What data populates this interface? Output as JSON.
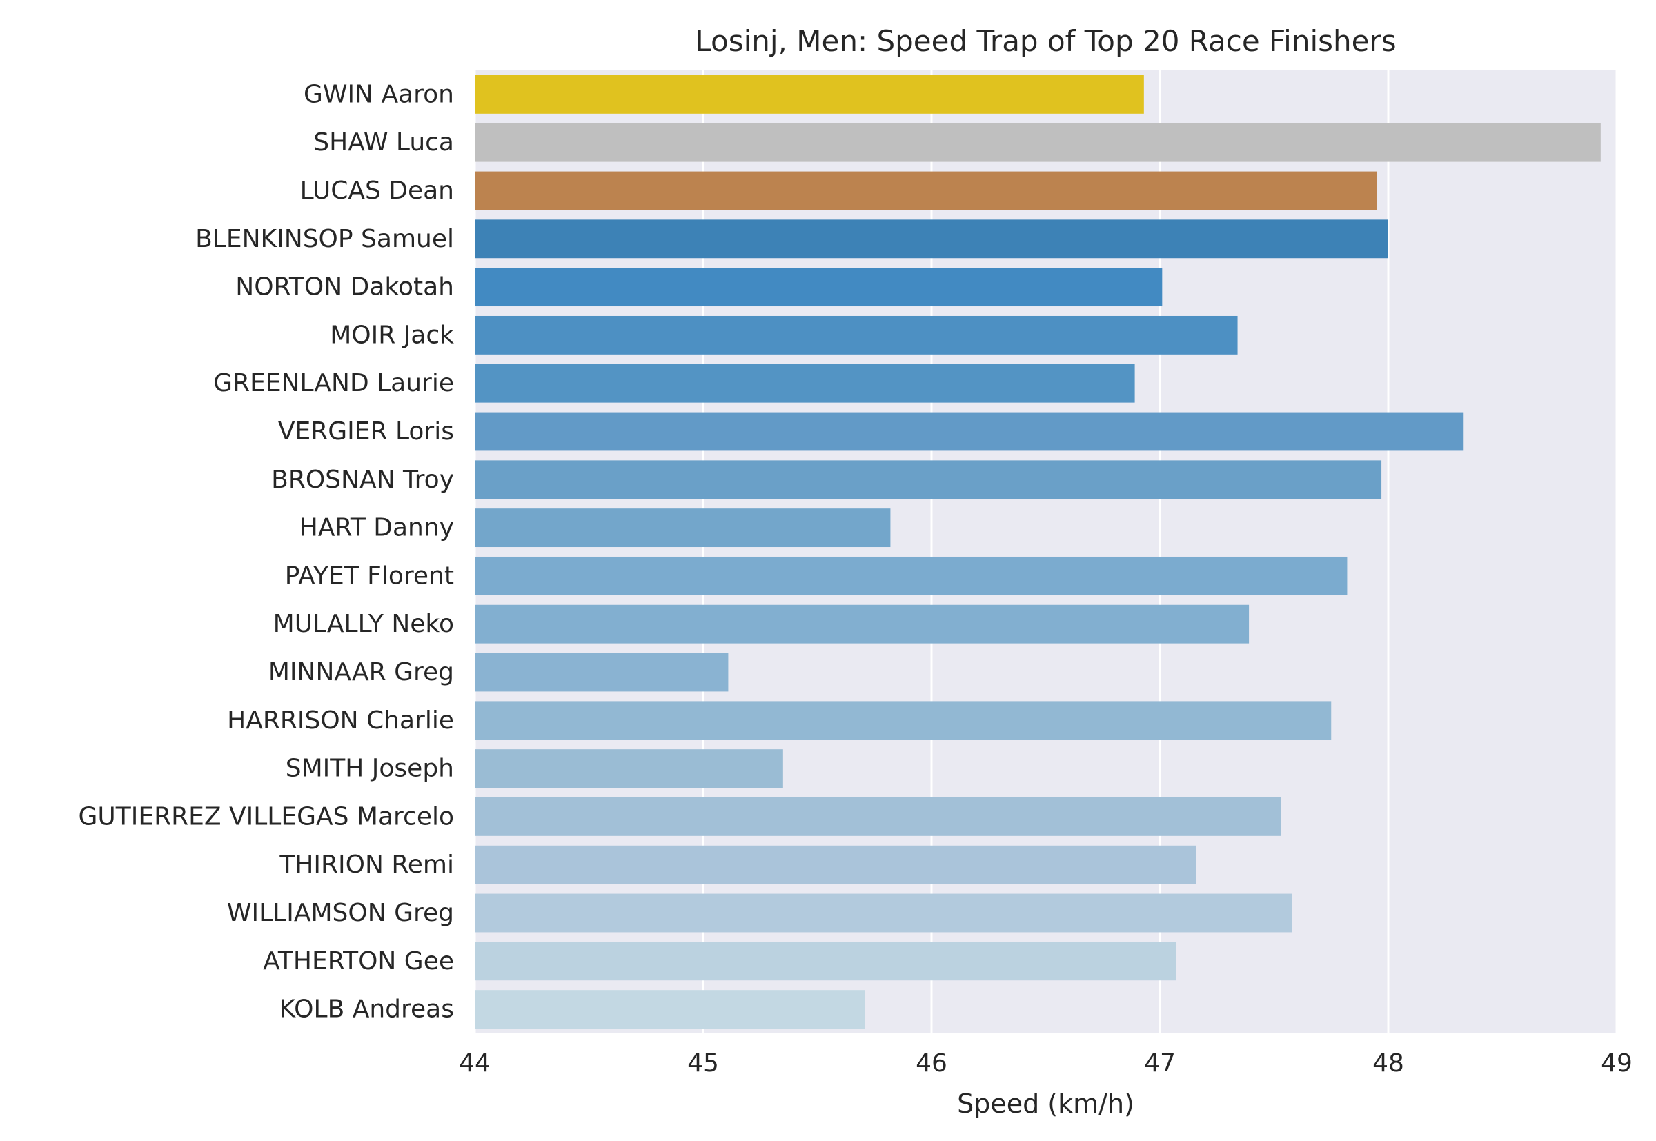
{
  "chart_data": {
    "type": "bar",
    "orientation": "horizontal",
    "title": "Losinj, Men: Speed Trap of Top 20 Race Finishers",
    "xlabel": "Speed (km/h)",
    "ylabel": "",
    "xlim": [
      44,
      49
    ],
    "xticks": [
      44,
      45,
      46,
      47,
      48,
      49
    ],
    "grid": true,
    "legend": "none",
    "categories": [
      "GWIN Aaron",
      "SHAW Luca",
      "LUCAS Dean",
      "BLENKINSOP Samuel",
      "NORTON Dakotah",
      "MOIR Jack",
      "GREENLAND Laurie",
      "VERGIER Loris",
      "BROSNAN Troy",
      "HART Danny",
      "PAYET Florent",
      "MULALLY Neko",
      "MINNAAR Greg",
      "HARRISON Charlie",
      "SMITH Joseph",
      "GUTIERREZ VILLEGAS Marcelo",
      "THIRION Remi",
      "WILLIAMSON Greg",
      "ATHERTON Gee",
      "KOLB Andreas"
    ],
    "values": [
      46.93,
      48.93,
      47.95,
      48.0,
      47.01,
      47.34,
      46.89,
      48.33,
      47.97,
      45.82,
      47.82,
      47.39,
      45.11,
      47.75,
      45.35,
      47.53,
      47.16,
      47.58,
      47.07,
      45.71
    ],
    "colors": [
      "#e0c21f",
      "#bfbfbf",
      "#bc834f",
      "#3d82b6",
      "#428ac2",
      "#4d90c3",
      "#5394c4",
      "#629ac7",
      "#6aa0c8",
      "#73a6cb",
      "#7babcf",
      "#82afd0",
      "#8ab3d2",
      "#92b8d3",
      "#9abcd4",
      "#a2c0d7",
      "#aac4da",
      "#b2cadd",
      "#bbd2e0",
      "#c3d8e3"
    ],
    "background": "#eaeaf2",
    "gridcolor": "#ffffff"
  }
}
